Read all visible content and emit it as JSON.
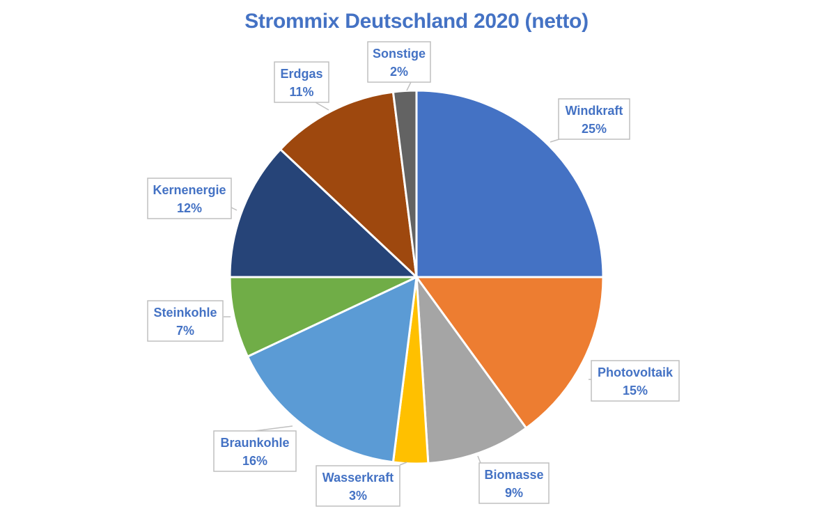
{
  "chart_data": {
    "type": "pie",
    "title": "Strommix Deutschland 2020 (netto)",
    "start_angle_deg": 0,
    "direction": "clockwise",
    "slices": [
      {
        "label": "Windkraft",
        "value": 25,
        "value_label": "25%",
        "color": "#4472C4"
      },
      {
        "label": "Photovoltaik",
        "value": 15,
        "value_label": "15%",
        "color": "#ED7D31"
      },
      {
        "label": "Biomasse",
        "value": 9,
        "value_label": "9%",
        "color": "#A5A5A5"
      },
      {
        "label": "Wasserkraft",
        "value": 3,
        "value_label": "3%",
        "color": "#FFC000"
      },
      {
        "label": "Braunkohle",
        "value": 16,
        "value_label": "16%",
        "color": "#5B9BD5"
      },
      {
        "label": "Steinkohle",
        "value": 7,
        "value_label": "7%",
        "color": "#70AD47"
      },
      {
        "label": "Kernenergie",
        "value": 12,
        "value_label": "12%",
        "color": "#264478"
      },
      {
        "label": "Erdgas",
        "value": 11,
        "value_label": "11%",
        "color": "#9E480E"
      },
      {
        "label": "Sonstige",
        "value": 2,
        "value_label": "2%",
        "color": "#636363"
      }
    ],
    "label_color": "#4472C4",
    "legend": "none"
  }
}
